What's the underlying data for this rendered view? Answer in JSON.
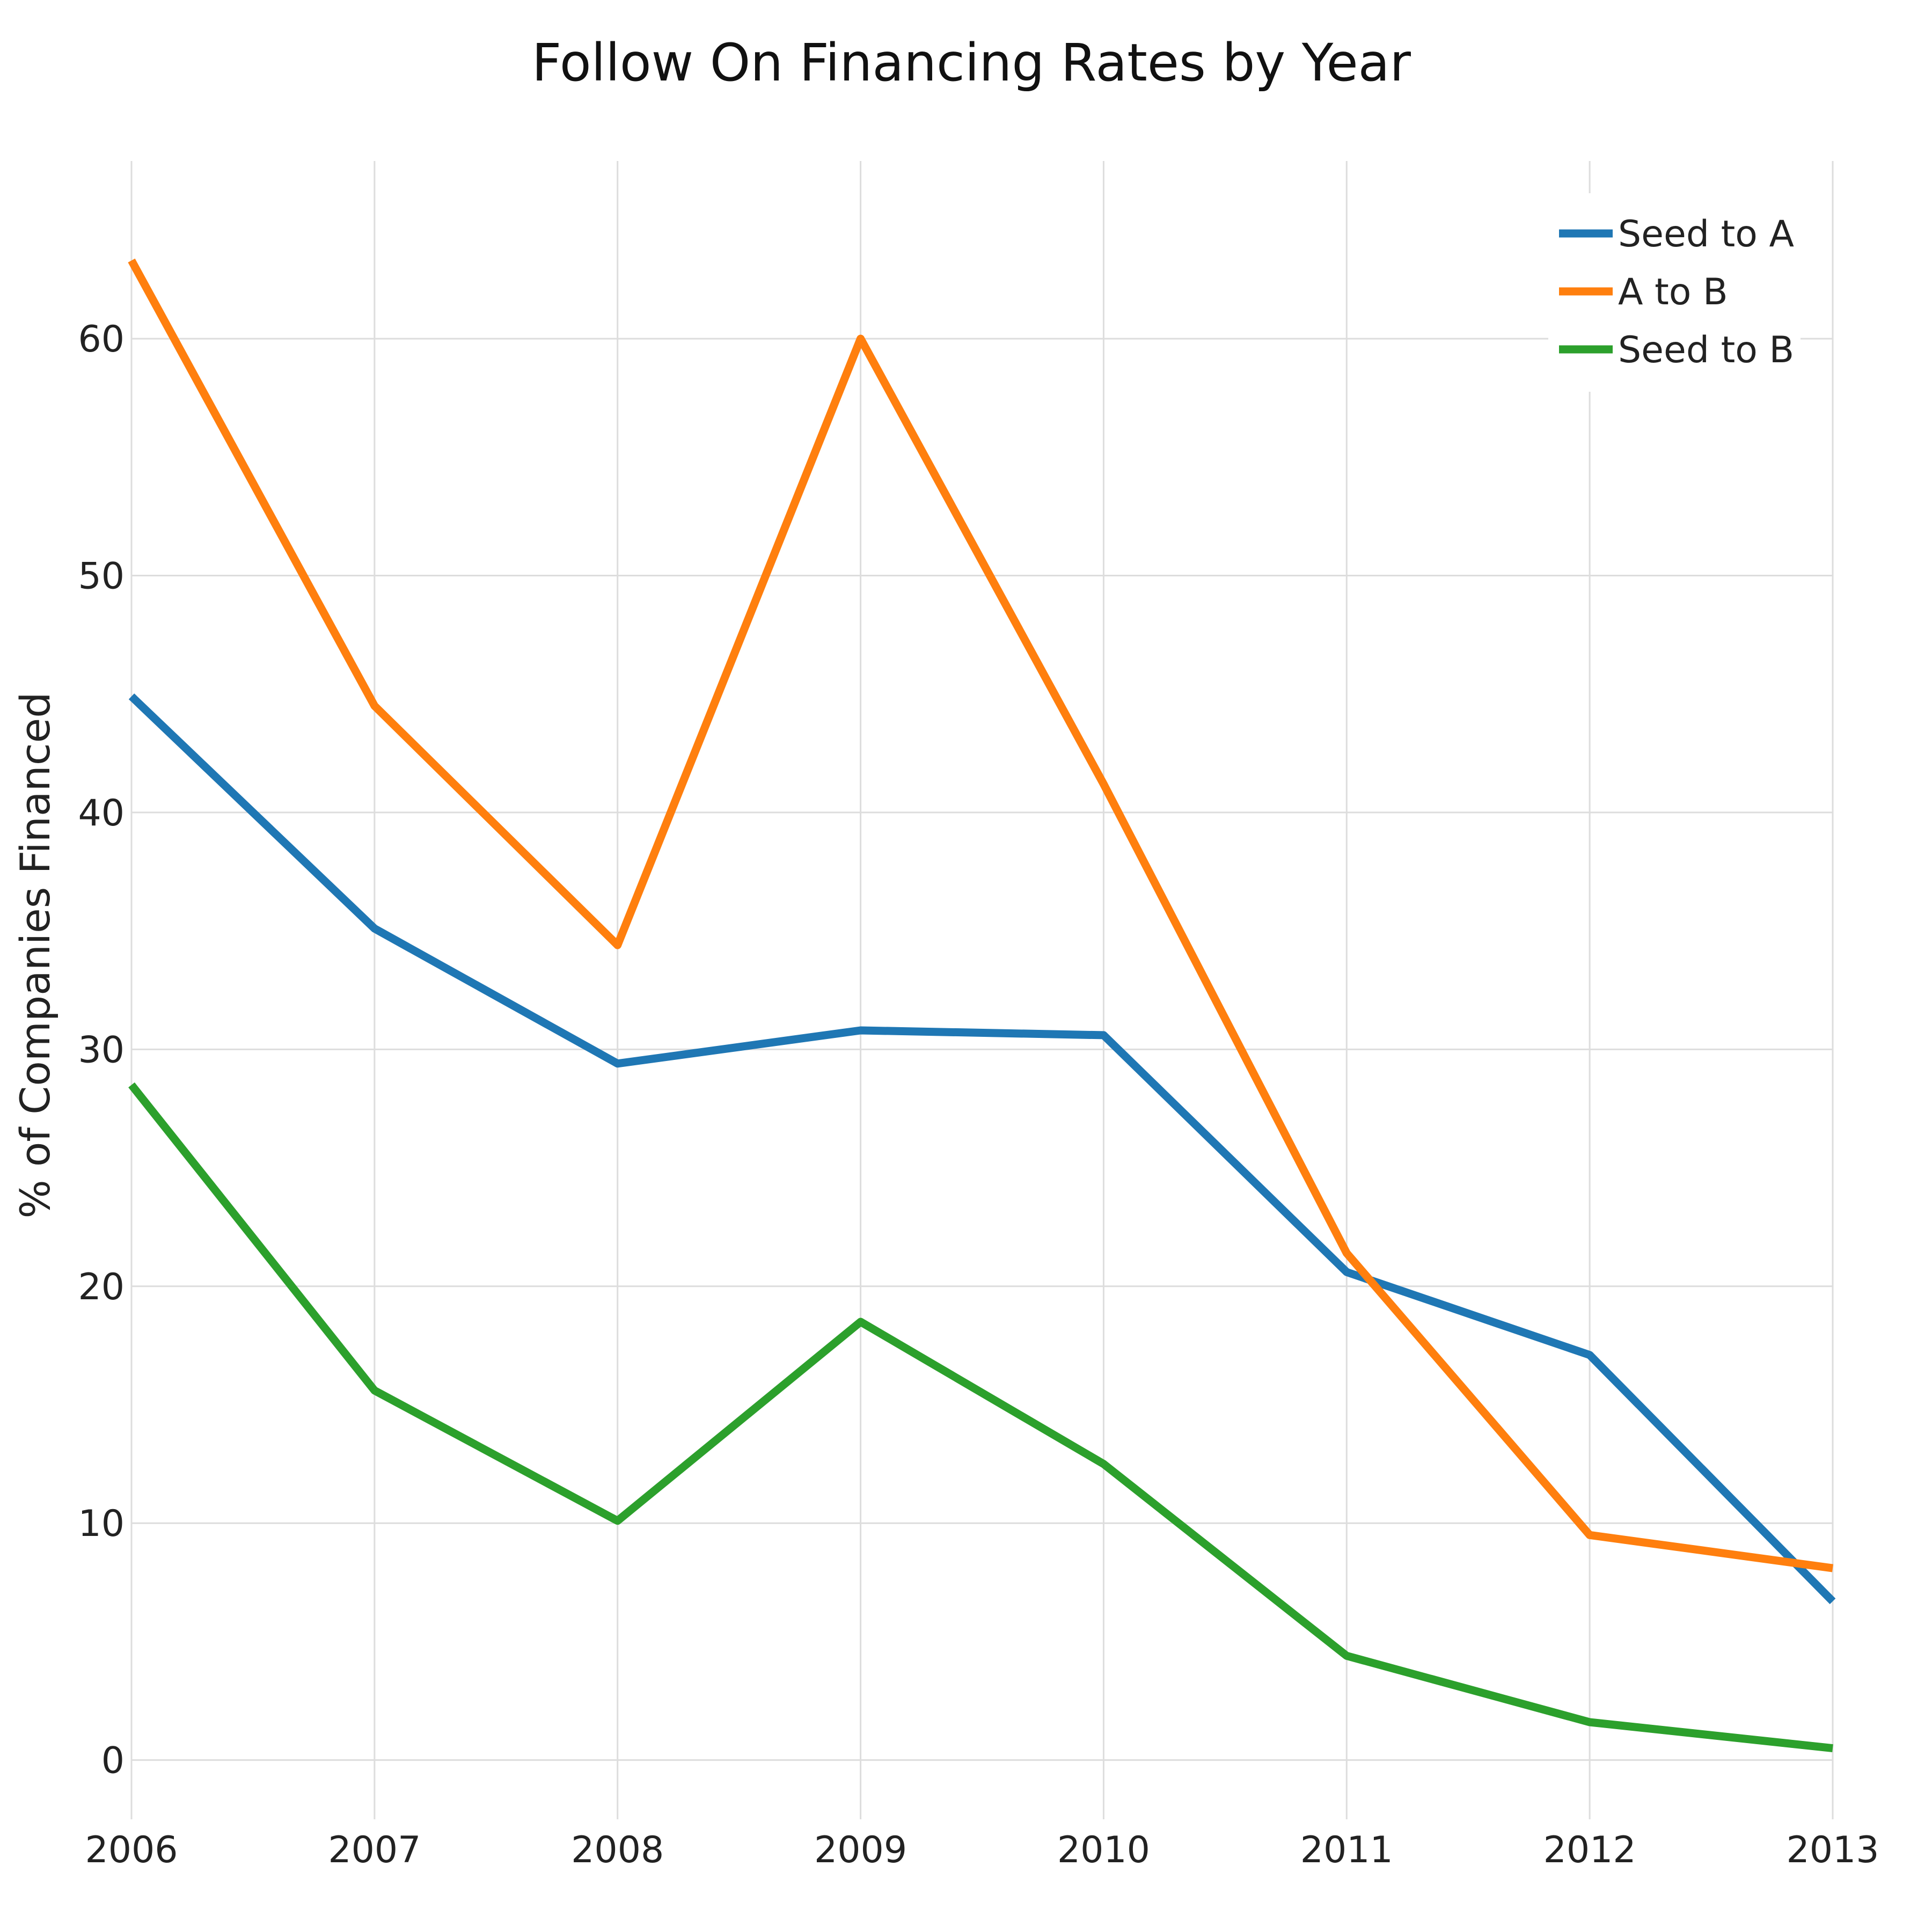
{
  "chart_data": {
    "type": "line",
    "title": "Follow On Financing Rates by Year",
    "xlabel": "",
    "ylabel": "% of Companies Financed",
    "x": [
      "2006",
      "2007",
      "2008",
      "2009",
      "2010",
      "2011",
      "2012",
      "2013"
    ],
    "yticks": [
      "0",
      "10",
      "20",
      "30",
      "40",
      "50",
      "60"
    ],
    "ylim": [
      -2.5,
      67.5
    ],
    "grid": true,
    "legend_position": "top-right",
    "series": [
      {
        "name": "Seed to A",
        "color": "#1f77b4",
        "values": [
          44.9,
          35.1,
          29.4,
          30.8,
          30.6,
          20.6,
          17.1,
          6.7
        ]
      },
      {
        "name": "A to B",
        "color": "#ff7f0e",
        "values": [
          63.3,
          44.5,
          34.4,
          60.0,
          41.2,
          21.4,
          9.5,
          8.1
        ]
      },
      {
        "name": "Seed to B",
        "color": "#2ca02c",
        "values": [
          28.5,
          15.6,
          10.1,
          18.5,
          12.5,
          4.4,
          1.6,
          0.5
        ]
      }
    ]
  }
}
